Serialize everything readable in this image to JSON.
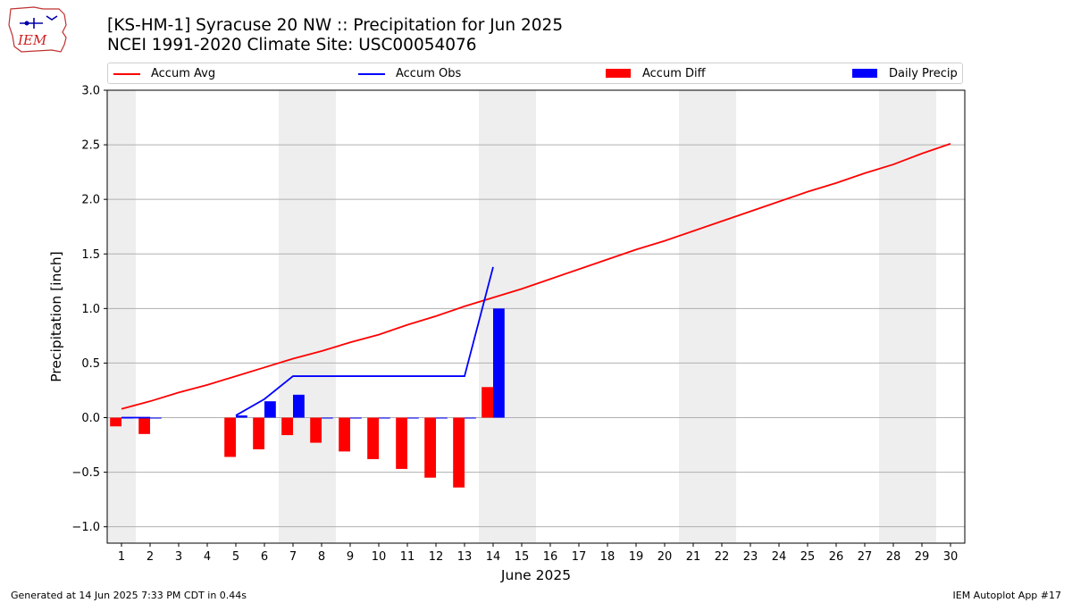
{
  "header": {
    "title_line1": "[KS-HM-1] Syracuse 20 NW :: Precipitation for Jun 2025",
    "title_line2": "NCEI 1991-2020 Climate Site: USC00054076"
  },
  "logo": {
    "text": "IEM"
  },
  "legend": {
    "accum_avg": "Accum Avg",
    "accum_obs": "Accum Obs",
    "accum_diff": "Accum Diff",
    "daily_precip": "Daily Precip"
  },
  "footer": {
    "generated": "Generated at 14 Jun 2025 7:33 PM CDT in 0.44s",
    "app": "IEM Autoplot App #17"
  },
  "colors": {
    "avg": "#ff0000",
    "obs": "#0000ff",
    "diff": "#ff0000",
    "daily": "#0000ff",
    "weekend_band": "#eeeeee",
    "grid": "#b0b0b0"
  },
  "chart_data": {
    "type": "bar",
    "xlabel": "June 2025",
    "ylabel": "Precipitation [inch]",
    "ylim": [
      -1.15,
      3.0
    ],
    "yticks": [
      "3.0",
      "2.5",
      "2.0",
      "1.5",
      "1.0",
      "0.5",
      "0.0",
      "−0.5",
      "−1.0"
    ],
    "ytick_values": [
      3.0,
      2.5,
      2.0,
      1.5,
      1.0,
      0.5,
      0.0,
      -0.5,
      -1.0
    ],
    "grid": "horizontal",
    "legend_position": "top",
    "days": [
      1,
      2,
      3,
      4,
      5,
      6,
      7,
      8,
      9,
      10,
      11,
      12,
      13,
      14,
      15,
      16,
      17,
      18,
      19,
      20,
      21,
      22,
      23,
      24,
      25,
      26,
      27,
      28,
      29,
      30
    ],
    "weekend_bands": [
      [
        1,
        1
      ],
      [
        7,
        8
      ],
      [
        14,
        15
      ],
      [
        21,
        22
      ],
      [
        28,
        29
      ]
    ],
    "series": [
      {
        "name": "Accum Avg",
        "kind": "line",
        "x": [
          1,
          2,
          3,
          4,
          5,
          6,
          7,
          8,
          9,
          10,
          11,
          12,
          13,
          14,
          15,
          16,
          17,
          18,
          19,
          20,
          21,
          22,
          23,
          24,
          25,
          26,
          27,
          28,
          29,
          30
        ],
        "values": [
          0.08,
          0.15,
          0.23,
          0.3,
          0.38,
          0.46,
          0.54,
          0.61,
          0.69,
          0.76,
          0.85,
          0.93,
          1.02,
          1.1,
          1.18,
          1.27,
          1.36,
          1.45,
          1.54,
          1.62,
          1.71,
          1.8,
          1.89,
          1.98,
          2.07,
          2.15,
          2.24,
          2.32,
          2.42,
          2.51
        ]
      },
      {
        "name": "Accum Obs",
        "kind": "line",
        "segments": [
          {
            "x": [
              1,
              2
            ],
            "values": [
              0.0,
              0.0
            ]
          },
          {
            "x": [
              5,
              6,
              7,
              8,
              9,
              10,
              11,
              12,
              13,
              14
            ],
            "values": [
              0.02,
              0.17,
              0.38,
              0.38,
              0.38,
              0.38,
              0.38,
              0.38,
              0.38,
              1.38
            ]
          }
        ]
      },
      {
        "name": "Accum Diff",
        "kind": "bar",
        "x": [
          1,
          2,
          5,
          6,
          7,
          8,
          9,
          10,
          11,
          12,
          13,
          14
        ],
        "values": [
          -0.08,
          -0.15,
          -0.36,
          -0.29,
          -0.16,
          -0.23,
          -0.31,
          -0.38,
          -0.47,
          -0.55,
          -0.64,
          0.28
        ]
      },
      {
        "name": "Daily Precip",
        "kind": "bar",
        "x": [
          1,
          2,
          5,
          6,
          7,
          8,
          9,
          10,
          11,
          12,
          13,
          14
        ],
        "values": [
          0.0,
          0.0,
          0.02,
          0.15,
          0.21,
          0.0,
          0.0,
          0.0,
          0.0,
          0.0,
          0.0,
          1.0
        ]
      }
    ]
  }
}
